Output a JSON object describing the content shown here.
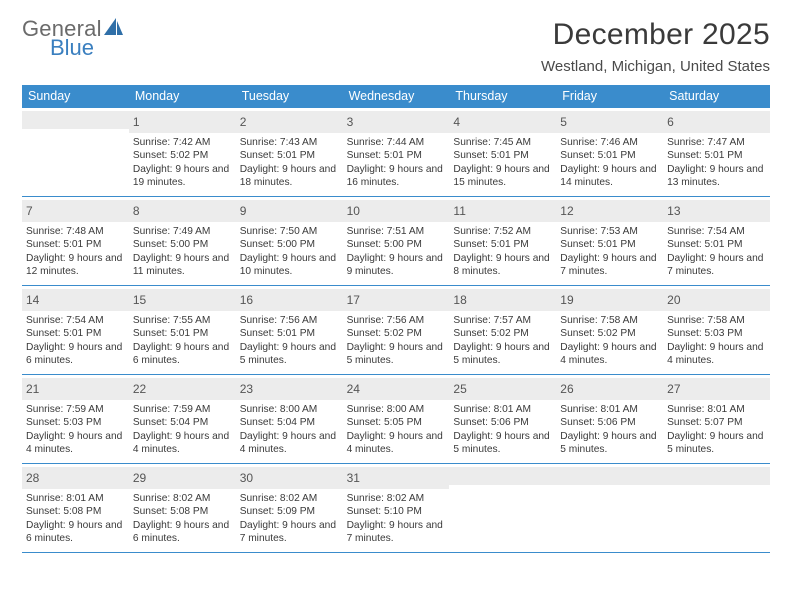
{
  "logo": {
    "word1": "General",
    "word2": "Blue"
  },
  "title": "December 2025",
  "subtitle": "Westland, Michigan, United States",
  "colors": {
    "header_bg": "#3a8ccc",
    "header_text": "#ffffff",
    "daynum_bg": "#ececec",
    "week_border": "#3a8ccc",
    "body_text": "#3a3a3a",
    "logo_gray": "#6b6b6b",
    "logo_blue": "#3a7fbf"
  },
  "day_names": [
    "Sunday",
    "Monday",
    "Tuesday",
    "Wednesday",
    "Thursday",
    "Friday",
    "Saturday"
  ],
  "weeks": [
    [
      {
        "day": "",
        "sunrise": "",
        "sunset": "",
        "daylight": ""
      },
      {
        "day": "1",
        "sunrise": "7:42 AM",
        "sunset": "5:02 PM",
        "daylight": "9 hours and 19 minutes."
      },
      {
        "day": "2",
        "sunrise": "7:43 AM",
        "sunset": "5:01 PM",
        "daylight": "9 hours and 18 minutes."
      },
      {
        "day": "3",
        "sunrise": "7:44 AM",
        "sunset": "5:01 PM",
        "daylight": "9 hours and 16 minutes."
      },
      {
        "day": "4",
        "sunrise": "7:45 AM",
        "sunset": "5:01 PM",
        "daylight": "9 hours and 15 minutes."
      },
      {
        "day": "5",
        "sunrise": "7:46 AM",
        "sunset": "5:01 PM",
        "daylight": "9 hours and 14 minutes."
      },
      {
        "day": "6",
        "sunrise": "7:47 AM",
        "sunset": "5:01 PM",
        "daylight": "9 hours and 13 minutes."
      }
    ],
    [
      {
        "day": "7",
        "sunrise": "7:48 AM",
        "sunset": "5:01 PM",
        "daylight": "9 hours and 12 minutes."
      },
      {
        "day": "8",
        "sunrise": "7:49 AM",
        "sunset": "5:00 PM",
        "daylight": "9 hours and 11 minutes."
      },
      {
        "day": "9",
        "sunrise": "7:50 AM",
        "sunset": "5:00 PM",
        "daylight": "9 hours and 10 minutes."
      },
      {
        "day": "10",
        "sunrise": "7:51 AM",
        "sunset": "5:00 PM",
        "daylight": "9 hours and 9 minutes."
      },
      {
        "day": "11",
        "sunrise": "7:52 AM",
        "sunset": "5:01 PM",
        "daylight": "9 hours and 8 minutes."
      },
      {
        "day": "12",
        "sunrise": "7:53 AM",
        "sunset": "5:01 PM",
        "daylight": "9 hours and 7 minutes."
      },
      {
        "day": "13",
        "sunrise": "7:54 AM",
        "sunset": "5:01 PM",
        "daylight": "9 hours and 7 minutes."
      }
    ],
    [
      {
        "day": "14",
        "sunrise": "7:54 AM",
        "sunset": "5:01 PM",
        "daylight": "9 hours and 6 minutes."
      },
      {
        "day": "15",
        "sunrise": "7:55 AM",
        "sunset": "5:01 PM",
        "daylight": "9 hours and 6 minutes."
      },
      {
        "day": "16",
        "sunrise": "7:56 AM",
        "sunset": "5:01 PM",
        "daylight": "9 hours and 5 minutes."
      },
      {
        "day": "17",
        "sunrise": "7:56 AM",
        "sunset": "5:02 PM",
        "daylight": "9 hours and 5 minutes."
      },
      {
        "day": "18",
        "sunrise": "7:57 AM",
        "sunset": "5:02 PM",
        "daylight": "9 hours and 5 minutes."
      },
      {
        "day": "19",
        "sunrise": "7:58 AM",
        "sunset": "5:02 PM",
        "daylight": "9 hours and 4 minutes."
      },
      {
        "day": "20",
        "sunrise": "7:58 AM",
        "sunset": "5:03 PM",
        "daylight": "9 hours and 4 minutes."
      }
    ],
    [
      {
        "day": "21",
        "sunrise": "7:59 AM",
        "sunset": "5:03 PM",
        "daylight": "9 hours and 4 minutes."
      },
      {
        "day": "22",
        "sunrise": "7:59 AM",
        "sunset": "5:04 PM",
        "daylight": "9 hours and 4 minutes."
      },
      {
        "day": "23",
        "sunrise": "8:00 AM",
        "sunset": "5:04 PM",
        "daylight": "9 hours and 4 minutes."
      },
      {
        "day": "24",
        "sunrise": "8:00 AM",
        "sunset": "5:05 PM",
        "daylight": "9 hours and 4 minutes."
      },
      {
        "day": "25",
        "sunrise": "8:01 AM",
        "sunset": "5:06 PM",
        "daylight": "9 hours and 5 minutes."
      },
      {
        "day": "26",
        "sunrise": "8:01 AM",
        "sunset": "5:06 PM",
        "daylight": "9 hours and 5 minutes."
      },
      {
        "day": "27",
        "sunrise": "8:01 AM",
        "sunset": "5:07 PM",
        "daylight": "9 hours and 5 minutes."
      }
    ],
    [
      {
        "day": "28",
        "sunrise": "8:01 AM",
        "sunset": "5:08 PM",
        "daylight": "9 hours and 6 minutes."
      },
      {
        "day": "29",
        "sunrise": "8:02 AM",
        "sunset": "5:08 PM",
        "daylight": "9 hours and 6 minutes."
      },
      {
        "day": "30",
        "sunrise": "8:02 AM",
        "sunset": "5:09 PM",
        "daylight": "9 hours and 7 minutes."
      },
      {
        "day": "31",
        "sunrise": "8:02 AM",
        "sunset": "5:10 PM",
        "daylight": "9 hours and 7 minutes."
      },
      {
        "day": "",
        "sunrise": "",
        "sunset": "",
        "daylight": ""
      },
      {
        "day": "",
        "sunrise": "",
        "sunset": "",
        "daylight": ""
      },
      {
        "day": "",
        "sunrise": "",
        "sunset": "",
        "daylight": ""
      }
    ]
  ],
  "labels": {
    "sunrise_prefix": "Sunrise: ",
    "sunset_prefix": "Sunset: ",
    "daylight_prefix": "Daylight: "
  }
}
